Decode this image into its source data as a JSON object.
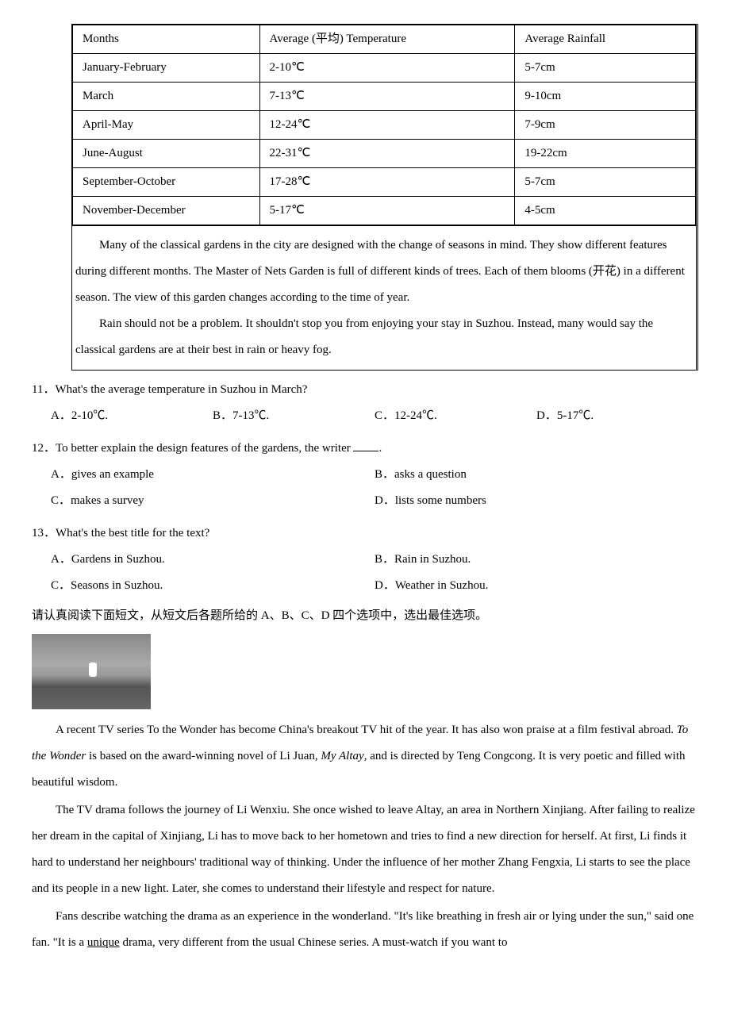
{
  "table": {
    "headers": [
      "Months",
      "Average (平均) Temperature",
      "Average Rainfall"
    ],
    "rows": [
      [
        "January-February",
        "2-10℃",
        "5-7cm"
      ],
      [
        "March",
        "7-13℃",
        "9-10cm"
      ],
      [
        "April-May",
        "12-24℃",
        "7-9cm"
      ],
      [
        "June-August",
        "22-31℃",
        "19-22cm"
      ],
      [
        "September-October",
        "17-28℃",
        "5-7cm"
      ],
      [
        "November-December",
        "5-17℃",
        "4-5cm"
      ]
    ]
  },
  "passage1": {
    "p1": "Many of the classical gardens in the city are designed with the change of seasons in mind. They show different features during different months. The Master of Nets Garden is full of different kinds of trees. Each of them blooms (开花) in a different season. The view of this garden changes according to the time of year.",
    "p2": "Rain should not be a problem. It shouldn't stop you from enjoying your stay in Suzhou. Instead, many would say the classical gardens are at their best in rain or heavy fog."
  },
  "questions": [
    {
      "num": "11",
      "text": "．What's the average temperature in Suzhou in March?",
      "layout": "4col",
      "options": [
        "A．2-10℃.",
        "B．7-13℃.",
        "C．12-24℃.",
        "D．5-17℃."
      ]
    },
    {
      "num": "12",
      "text_before": "．To better explain the design features of the gardens, the writer ",
      "text_after": ".",
      "layout": "2col",
      "options": [
        "A．gives an example",
        "B．asks a question",
        "C．makes a survey",
        "D．lists some numbers"
      ]
    },
    {
      "num": "13",
      "text": "．What's the best title for the text?",
      "layout": "2col",
      "options": [
        "A．Gardens in Suzhou.",
        "B．Rain in Suzhou.",
        "C．Seasons in Suzhou.",
        "D．Weather in Suzhou."
      ]
    }
  ],
  "instruction": "请认真阅读下面短文，从短文后各题所给的 A、B、C、D 四个选项中，选出最佳选项。",
  "passage2": {
    "p1_a": "A recent TV series To the Wonder has become China's breakout TV hit of the year. It has also won praise at a film festival abroad. ",
    "p1_italic1": "To the Wonder",
    "p1_b": " is based on the award-winning novel of Li Juan, ",
    "p1_italic2": "My Altay",
    "p1_c": ", and is directed by Teng Congcong. It is very poetic and filled with beautiful wisdom.",
    "p2": "The TV drama follows the journey of Li Wenxiu. She once wished to leave Altay, an area in Northern Xinjiang. After failing to realize her dream in the capital of Xinjiang, Li has to move back to her hometown and tries to find a new direction for herself. At first, Li finds it hard to understand her neighbours' traditional way of thinking. Under the influence of her mother Zhang Fengxia, Li starts to see the place and its people in a new light. Later, she comes to understand their lifestyle and respect for nature.",
    "p3_a": "Fans describe watching the drama as an experience in the wonderland. \"It's like breathing in fresh air or lying under the sun,\" said one fan. \"It is a ",
    "p3_underline": "unique",
    "p3_b": " drama, very different from the usual Chinese series. A must-watch if you want to"
  }
}
